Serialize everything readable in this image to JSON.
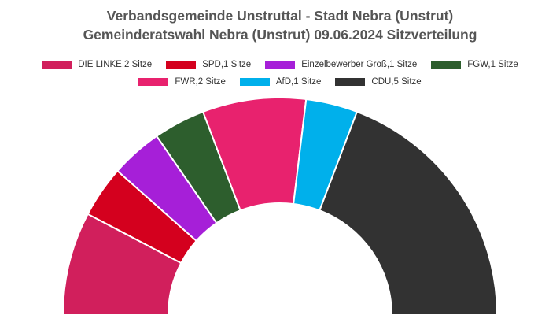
{
  "chart_data": {
    "type": "pie",
    "subtype": "parliament-half-donut",
    "title": "Verbandsgemeinde Unstruttal - Stadt Nebra (Unstrut)",
    "subtitle": "Gemeinderatswahl Nebra (Unstrut) 09.06.2024 Sitzverteilung",
    "legend_position": "top",
    "series": [
      {
        "name": "DIE LINKE",
        "value": 2,
        "color": "#d11f5c",
        "legend": "DIE LINKE,2 Sitze"
      },
      {
        "name": "SPD",
        "value": 1,
        "color": "#d4001e",
        "legend": "SPD,1 Sitze"
      },
      {
        "name": "Einzelbewerber Groß",
        "value": 1,
        "color": "#a61fd8",
        "legend": "Einzelbewerber Groß,1 Sitze"
      },
      {
        "name": "FGW",
        "value": 1,
        "color": "#2d5e2d",
        "legend": "FGW,1 Sitze"
      },
      {
        "name": "FWR",
        "value": 2,
        "color": "#e8226e",
        "legend": "FWR,2 Sitze"
      },
      {
        "name": "AfD",
        "value": 1,
        "color": "#00b0eb",
        "legend": "AfD,1 Sitze"
      },
      {
        "name": "CDU",
        "value": 5,
        "color": "#323232",
        "legend": "CDU,5 Sitze"
      }
    ]
  }
}
